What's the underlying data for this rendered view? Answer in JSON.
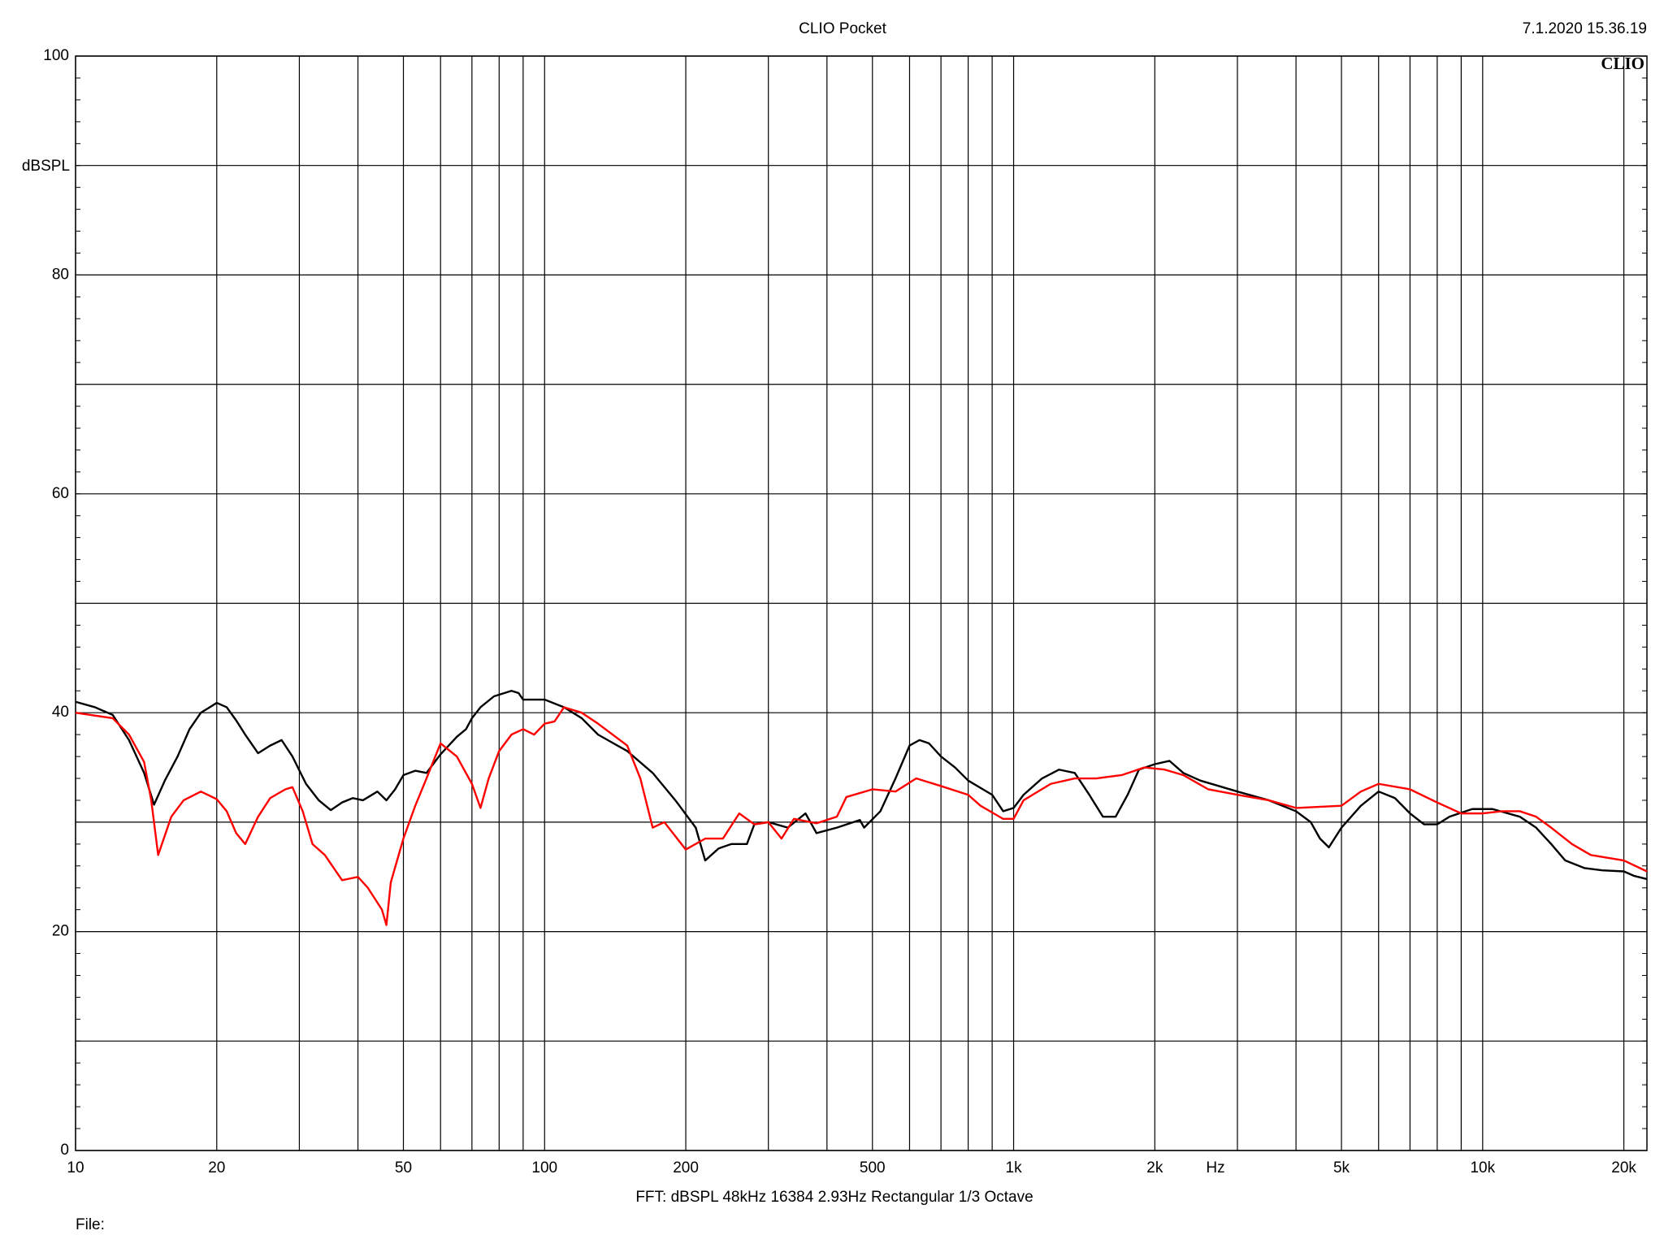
{
  "chart_data": {
    "type": "line",
    "title": "CLIO Pocket",
    "timestamp": "7.1.2020 15.36.19",
    "logo": "CLIO",
    "y_label": "dBSPL",
    "x_label": "Hz",
    "footer": "FFT:  dBSPL  48kHz   16384  2.93Hz  Rectangular  1/3 Octave",
    "file_label": "File:",
    "xscale": "log",
    "grid": true,
    "xlim": [
      10,
      22400
    ],
    "ylim": [
      0,
      100
    ],
    "yticks": [
      0,
      20,
      40,
      60,
      80,
      100
    ],
    "minor_yticks": [
      10,
      30,
      50,
      70,
      90
    ],
    "xticks": [
      10,
      20,
      50,
      100,
      200,
      500,
      {
        "value": 1000,
        "label": "1k"
      },
      {
        "value": 2000,
        "label": "2k"
      },
      {
        "value": 5000,
        "label": "5k"
      },
      {
        "value": 10000,
        "label": "10k"
      },
      {
        "value": 20000,
        "label": "20k"
      }
    ],
    "minor_xticks": [
      30,
      40,
      60,
      70,
      80,
      90,
      300,
      400,
      600,
      700,
      800,
      900,
      3000,
      4000,
      6000,
      7000,
      8000,
      9000
    ],
    "series": [
      {
        "color": "#000000",
        "x": [
          10,
          11,
          12,
          13,
          14,
          14.7,
          15.5,
          16.5,
          17.5,
          18.5,
          20,
          21,
          22,
          23,
          24.5,
          26,
          27.5,
          29,
          31,
          33,
          35,
          37,
          39,
          41,
          44,
          46,
          48,
          50,
          53,
          56,
          60,
          65,
          68,
          70,
          73,
          78,
          85,
          88,
          90,
          100,
          110,
          120,
          130,
          150,
          170,
          190,
          210,
          220,
          235,
          250,
          270,
          280,
          300,
          330,
          360,
          380,
          420,
          470,
          480,
          520,
          560,
          600,
          630,
          660,
          700,
          750,
          800,
          900,
          950,
          1000,
          1050,
          1150,
          1250,
          1350,
          1450,
          1550,
          1650,
          1750,
          1850,
          2000,
          2150,
          2300,
          2500,
          3000,
          3500,
          4000,
          4300,
          4500,
          4700,
          5000,
          5500,
          6000,
          6500,
          7000,
          7500,
          8000,
          8500,
          9500,
          10500,
          12000,
          13000,
          14000,
          15000,
          16500,
          18000,
          20000,
          21000,
          22400
        ],
        "values": [
          41,
          40.5,
          39.8,
          37.5,
          34.5,
          31.6,
          33.8,
          36,
          38.5,
          40,
          40.9,
          40.5,
          39.3,
          38,
          36.3,
          37,
          37.5,
          36,
          33.5,
          32,
          31.1,
          31.8,
          32.2,
          32,
          32.8,
          32,
          33,
          34.3,
          34.7,
          34.5,
          36.2,
          37.8,
          38.5,
          39.5,
          40.5,
          41.5,
          42,
          41.8,
          41.2,
          41.2,
          40.5,
          39.5,
          38,
          36.5,
          34.5,
          32,
          29.5,
          26.5,
          27.6,
          28,
          28,
          29.8,
          30,
          29.5,
          30.8,
          29,
          29.5,
          30.2,
          29.5,
          31,
          34,
          37,
          37.5,
          37.2,
          36,
          35,
          33.8,
          32.5,
          31,
          31.3,
          32.5,
          34,
          34.8,
          34.5,
          32.5,
          30.5,
          30.5,
          32.5,
          34.8,
          35.3,
          35.6,
          34.5,
          33.8,
          32.8,
          32,
          31,
          30,
          28.5,
          27.7,
          29.5,
          31.5,
          32.8,
          32.2,
          30.8,
          29.8,
          29.8,
          30.5,
          31.2,
          31.2,
          30.5,
          29.5,
          28,
          26.5,
          25.8,
          25.6,
          25.5,
          25.1,
          24.8
        ]
      },
      {
        "color": "#ff0000",
        "x": [
          10,
          12,
          13,
          14,
          14.5,
          15,
          16,
          17,
          18.5,
          20,
          21,
          22,
          23,
          24.5,
          26,
          28,
          29,
          30.5,
          32,
          34,
          37,
          40,
          42,
          45,
          46,
          47,
          50,
          53,
          56,
          60,
          65,
          70,
          73,
          76,
          80,
          85,
          90,
          95,
          100,
          105,
          110,
          120,
          130,
          150,
          160,
          170,
          180,
          200,
          220,
          240,
          260,
          280,
          300,
          320,
          340,
          380,
          420,
          440,
          500,
          560,
          620,
          700,
          800,
          850,
          950,
          1000,
          1050,
          1200,
          1350,
          1500,
          1700,
          1900,
          2100,
          2300,
          2600,
          3000,
          3500,
          4000,
          5000,
          5500,
          6000,
          7000,
          8000,
          9000,
          10000,
          11000,
          12000,
          13000,
          14000,
          15500,
          17000,
          20000,
          22400
        ],
        "values": [
          40,
          39.5,
          38,
          35.5,
          32,
          27,
          30.5,
          32,
          32.8,
          32.1,
          31,
          29,
          28,
          30.5,
          32.2,
          33,
          33.2,
          31,
          28,
          27,
          24.7,
          25,
          24,
          22,
          20.6,
          24.5,
          28.5,
          31.5,
          34,
          37.2,
          36,
          33.5,
          31.3,
          34,
          36.5,
          38,
          38.5,
          38,
          39,
          39.2,
          40.5,
          40,
          39,
          37,
          34,
          29.5,
          30,
          27.5,
          28.5,
          28.5,
          30.8,
          29.8,
          30,
          28.5,
          30.3,
          29.9,
          30.5,
          32.3,
          33,
          32.8,
          34,
          33.3,
          32.5,
          31.5,
          30.3,
          30.3,
          32,
          33.5,
          34,
          34,
          34.3,
          35,
          34.8,
          34.3,
          33,
          32.5,
          32,
          31.3,
          31.5,
          32.8,
          33.5,
          33,
          31.8,
          30.8,
          30.8,
          31,
          31,
          30.5,
          29.5,
          28,
          27,
          26.5,
          25.5
        ]
      }
    ]
  }
}
